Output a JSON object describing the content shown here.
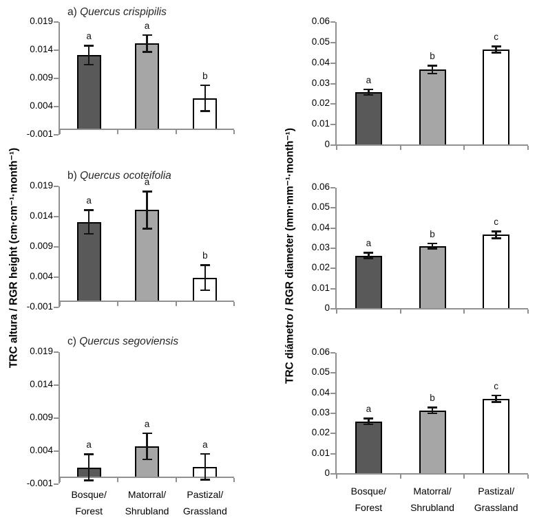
{
  "figure": {
    "left_ylabel": "TRC altura / RGR height (cm·cm⁻¹·month⁻¹)",
    "right_ylabel": "TRC diámetro / RGR diameter (mm·mm⁻¹·month⁻¹)",
    "background": "#ffffff"
  },
  "palette": {
    "bar_fills": [
      "#595959",
      "#a6a6a6",
      "#ffffff"
    ],
    "bar_border": "#000000",
    "axis_color": "#909090",
    "error_color": "#141414",
    "text_color": "#000000"
  },
  "categories": [
    {
      "line1": "Bosque/",
      "line2": "Forest"
    },
    {
      "line1": "Matorral/",
      "line2": "Shrubland"
    },
    {
      "line1": "Pastizal/",
      "line2": "Grassland"
    }
  ],
  "chart_data": [
    {
      "id": "height-crispipilis",
      "type": "bar",
      "title_prefix": "a)",
      "title_species": "Quercus crispipilis",
      "ylabel": "TRC altura / RGR height (cm·cm⁻¹·month⁻¹)",
      "ylim": [
        -0.001,
        0.019
      ],
      "ytick_labels": [
        "0.019",
        "0.014",
        "0.009",
        "0.004",
        "-0.001"
      ],
      "ytick_values": [
        0.019,
        0.014,
        0.009,
        0.004,
        -0.001
      ],
      "categories": [
        "Bosque/Forest",
        "Matorral/Shrubland",
        "Pastizal/Grassland"
      ],
      "values": [
        0.0131,
        0.0152,
        0.0055
      ],
      "errors": [
        0.0017,
        0.0015,
        0.0023
      ],
      "sig_letters": [
        "a",
        "a",
        "b"
      ]
    },
    {
      "id": "diameter-crispipilis",
      "type": "bar",
      "title_prefix": "",
      "title_species": "",
      "ylabel": "TRC diámetro / RGR diameter (mm·mm⁻¹·month⁻¹)",
      "ylim": [
        0,
        0.06
      ],
      "ytick_labels": [
        "0.06",
        "0.05",
        "0.04",
        "0.03",
        "0.02",
        "0.01",
        "0"
      ],
      "ytick_values": [
        0.06,
        0.05,
        0.04,
        0.03,
        0.02,
        0.01,
        0
      ],
      "categories": [
        "Bosque/Forest",
        "Matorral/Shrubland",
        "Pastizal/Grassland"
      ],
      "values": [
        0.0258,
        0.0368,
        0.0466
      ],
      "errors": [
        0.0014,
        0.002,
        0.0016
      ],
      "sig_letters": [
        "a",
        "b",
        "c"
      ]
    },
    {
      "id": "height-ocoteifolia",
      "type": "bar",
      "title_prefix": "b)",
      "title_species": "Quercus ocoteifolia",
      "ylabel": "TRC altura / RGR height (cm·cm⁻¹·month⁻¹)",
      "ylim": [
        -0.001,
        0.019
      ],
      "ytick_labels": [
        "0.019",
        "0.014",
        "0.009",
        "0.004",
        "-0.001"
      ],
      "ytick_values": [
        0.019,
        0.014,
        0.009,
        0.004,
        -0.001
      ],
      "categories": [
        "Bosque/Forest",
        "Matorral/Shrubland",
        "Pastizal/Grassland"
      ],
      "values": [
        0.0131,
        0.0151,
        0.0039
      ],
      "errors": [
        0.002,
        0.0031,
        0.0021
      ],
      "sig_letters": [
        "a",
        "a",
        "b"
      ]
    },
    {
      "id": "diameter-ocoteifolia",
      "type": "bar",
      "title_prefix": "",
      "title_species": "",
      "ylabel": "TRC diámetro / RGR diameter (mm·mm⁻¹·month⁻¹)",
      "ylim": [
        0,
        0.06
      ],
      "ytick_labels": [
        "0.06",
        "0.05",
        "0.04",
        "0.03",
        "0.02",
        "0.01",
        "0"
      ],
      "ytick_values": [
        0.06,
        0.05,
        0.04,
        0.03,
        0.02,
        0.01,
        0
      ],
      "categories": [
        "Bosque/Forest",
        "Matorral/Shrubland",
        "Pastizal/Grassland"
      ],
      "values": [
        0.0264,
        0.0311,
        0.0367
      ],
      "errors": [
        0.0014,
        0.0014,
        0.0018
      ],
      "sig_letters": [
        "a",
        "b",
        "c"
      ]
    },
    {
      "id": "height-segoviensis",
      "type": "bar",
      "title_prefix": "c)",
      "title_species": "Quercus segoviensis",
      "ylabel": "TRC altura / RGR height (cm·cm⁻¹·month⁻¹)",
      "ylim": [
        -0.001,
        0.019
      ],
      "ytick_labels": [
        "0.019",
        "0.014",
        "0.009",
        "0.004",
        "-0.001"
      ],
      "ytick_values": [
        0.019,
        0.014,
        0.009,
        0.004,
        -0.001
      ],
      "categories": [
        "Bosque/Forest",
        "Matorral/Shrubland",
        "Pastizal/Grassland"
      ],
      "values": [
        0.0015,
        0.0047,
        0.0016
      ],
      "errors": [
        0.002,
        0.002,
        0.002
      ],
      "sig_letters": [
        "a",
        "a",
        "a"
      ]
    },
    {
      "id": "diameter-segoviensis",
      "type": "bar",
      "title_prefix": "",
      "title_species": "",
      "ylabel": "TRC diámetro / RGR diameter (mm·mm⁻¹·month⁻¹)",
      "ylim": [
        0,
        0.06
      ],
      "ytick_labels": [
        "0.06",
        "0.05",
        "0.04",
        "0.03",
        "0.02",
        "0.01",
        "0"
      ],
      "ytick_values": [
        0.06,
        0.05,
        0.04,
        0.03,
        0.02,
        0.01,
        0
      ],
      "categories": [
        "Bosque/Forest",
        "Matorral/Shrubland",
        "Pastizal/Grassland"
      ],
      "values": [
        0.026,
        0.0315,
        0.0372
      ],
      "errors": [
        0.0015,
        0.0015,
        0.0017
      ],
      "sig_letters": [
        "a",
        "b",
        "c"
      ]
    }
  ]
}
